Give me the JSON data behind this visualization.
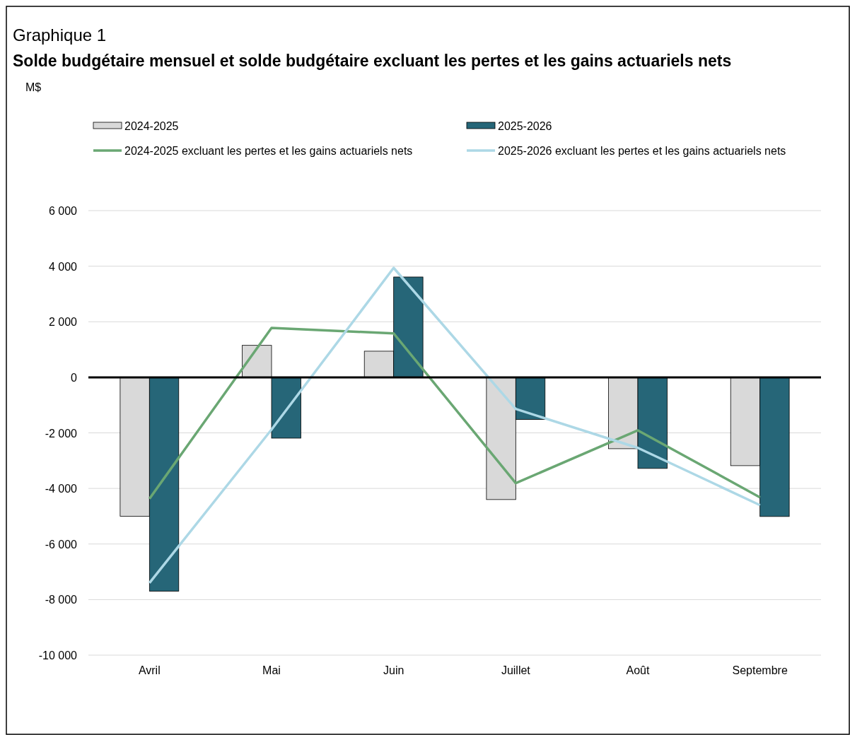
{
  "chart_data": {
    "type": "bar",
    "title": "Graphique 1",
    "subtitle": "Solde budgétaire mensuel et solde budgétaire excluant les pertes et les gains actuariels nets",
    "annotations": [
      "M$"
    ],
    "categories": [
      "Avril",
      "Mai",
      "Juin",
      "Juillet",
      "Août",
      "Septembre"
    ],
    "series": [
      {
        "name": "2024-2025",
        "color": "#d9d9d9",
        "values": [
          -5000,
          1150,
          940,
          -4400,
          -2570,
          -3180
        ]
      },
      {
        "name": "2025-2026",
        "color": "#266678",
        "values": [
          -7700,
          -2190,
          3610,
          -1520,
          -3280,
          -5010
        ]
      },
      {
        "name": "2024-2025 excluant les pertes et les gains actuariels nets",
        "type": "line",
        "color": "#6aa773",
        "values": [
          -4370,
          1780,
          1580,
          -3810,
          -1910,
          -4320
        ]
      },
      {
        "name": "2025-2026 excluant les pertes et les gains actuariels nets",
        "type": "line",
        "color": "#add8e6",
        "values": [
          -7400,
          -1880,
          3940,
          -1140,
          -2540,
          -4600
        ]
      }
    ],
    "ylim": [
      -10000,
      6000
    ],
    "yticks": [
      {
        "value": -10000,
        "label": "-10 000"
      },
      {
        "value": -8000,
        "label": "-8 000"
      },
      {
        "value": -6000,
        "label": "-6 000"
      },
      {
        "value": -4000,
        "label": "-4 000"
      },
      {
        "value": -2000,
        "label": "-2 000"
      },
      0,
      {
        "value": 2000,
        "label": "2 000"
      },
      {
        "value": 4000,
        "label": "4 000"
      },
      {
        "value": 6000,
        "label": "6 000"
      }
    ],
    "grid": "y",
    "legend": "top",
    "line_style": "solid"
  }
}
